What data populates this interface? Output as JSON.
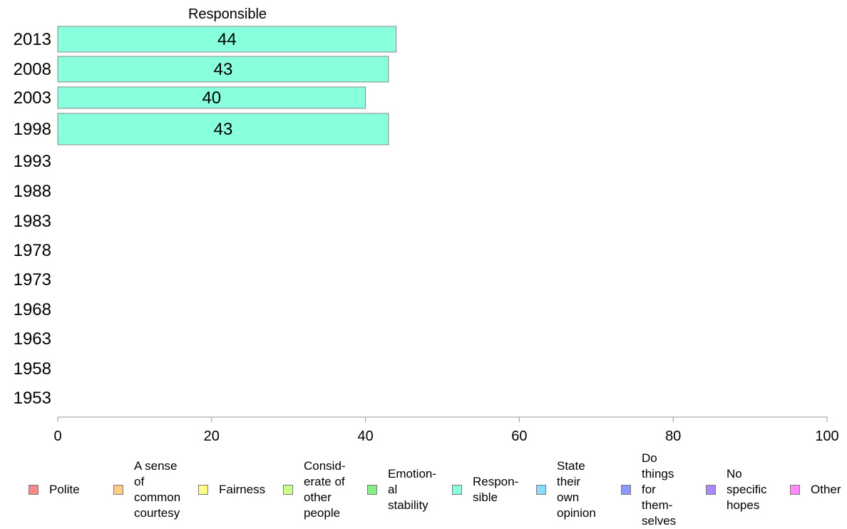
{
  "chart_data": {
    "type": "bar",
    "orientation": "horizontal",
    "title": "Responsible",
    "categories": [
      "2013",
      "2008",
      "2003",
      "1998",
      "1993",
      "1988",
      "1983",
      "1978",
      "1973",
      "1968",
      "1963",
      "1958",
      "1953"
    ],
    "series": [
      {
        "name": "Respon-\nsible",
        "color": "#88ffdd",
        "values": [
          44,
          43,
          40,
          43,
          null,
          null,
          null,
          null,
          null,
          null,
          null,
          null,
          null
        ]
      }
    ],
    "data_labels": [
      "44",
      "43",
      "40",
      "43"
    ],
    "xlim": [
      0,
      100
    ],
    "xticks": [
      "0",
      "20",
      "40",
      "60",
      "80",
      "100"
    ],
    "grid": false,
    "legend_position": "bottom",
    "legend": [
      {
        "label": "Polite",
        "color": "#ff8888"
      },
      {
        "label": "A sense\nof\ncommon\ncourtesy",
        "color": "#ffcc88"
      },
      {
        "label": "Fairness",
        "color": "#ffff88"
      },
      {
        "label": "Consid-\nerate of\nother\npeople",
        "color": "#ccff88"
      },
      {
        "label": "Emotion-\nal\nstability",
        "color": "#88ee88"
      },
      {
        "label": "Respon-\nsible",
        "color": "#88ffdd"
      },
      {
        "label": "State\ntheir\nown\nopinion",
        "color": "#88ddff"
      },
      {
        "label": "Do\nthings\nfor\nthem-\nselves",
        "color": "#8899ff"
      },
      {
        "label": "No\nspecific\nhopes",
        "color": "#aa88ff"
      },
      {
        "label": "Other",
        "color": "#ff88ff"
      }
    ]
  }
}
